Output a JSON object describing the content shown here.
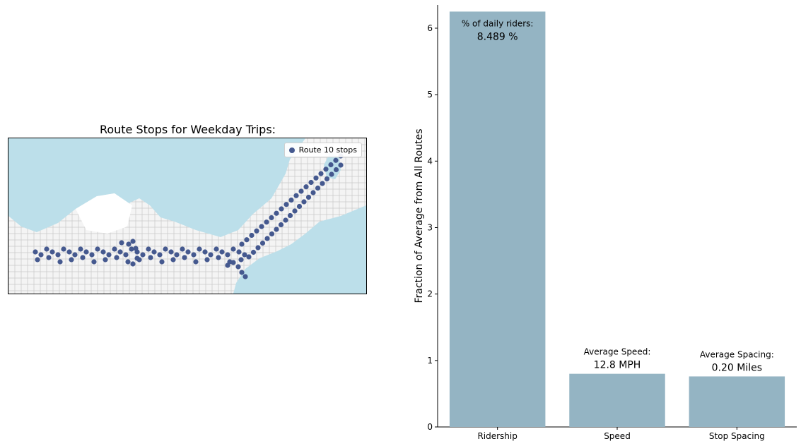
{
  "map": {
    "title": "Route Stops for Weekday Trips:",
    "legend_label": "Route 10 stops",
    "colors": {
      "water": "#bcdfea",
      "land": "#f4f4f4",
      "roads": "#c8c8c8",
      "stops": "#45598f"
    }
  },
  "chart_data": {
    "type": "bar",
    "categories": [
      "Ridership",
      "Speed",
      "Stop Spacing"
    ],
    "values": [
      6.25,
      0.8,
      0.76
    ],
    "ylabel": "Fraction of Average from All Routes",
    "ylim": [
      0,
      6.35
    ],
    "yticks": [
      0,
      1,
      2,
      3,
      4,
      5,
      6
    ],
    "bar_color": "#94b4c3",
    "annotations": [
      {
        "label": "% of daily riders:",
        "value": "8.489 %"
      },
      {
        "label": "Average Speed:",
        "value": "12.8 MPH"
      },
      {
        "label": "Average Spacing:",
        "value": "0.20 Miles"
      }
    ]
  }
}
